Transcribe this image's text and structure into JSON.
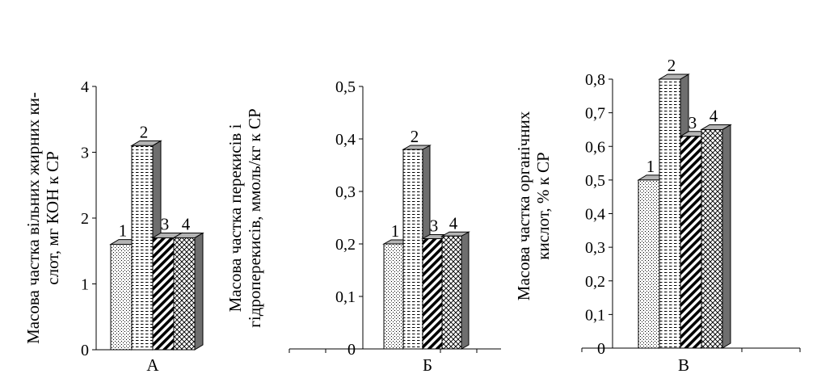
{
  "chart_data": [
    {
      "type": "bar",
      "panel_label": "А",
      "ylabel_lines": [
        "Масова частка вільних жирних ки-",
        "слот, мг КОН к СР"
      ],
      "categories": [
        "1",
        "2",
        "3",
        "4"
      ],
      "values": [
        1.6,
        3.1,
        1.7,
        1.7
      ],
      "ylim": [
        0,
        4
      ],
      "ticks": [
        "0",
        "1",
        "2",
        "3",
        "4"
      ],
      "grid": false
    },
    {
      "type": "bar",
      "panel_label": "Б",
      "ylabel_lines": [
        "Масова частка перекисів і",
        "гідроперекисів, ммоль/кг к СР"
      ],
      "categories": [
        "1",
        "2",
        "3",
        "4"
      ],
      "values": [
        0.2,
        0.38,
        0.21,
        0.215
      ],
      "ylim": [
        0,
        0.5
      ],
      "ticks": [
        "0",
        "0,1",
        "0,2",
        "0,3",
        "0,4",
        "0,5"
      ],
      "grid": false
    },
    {
      "type": "bar",
      "panel_label": "В",
      "ylabel_lines": [
        "Масова частка органічних",
        "кислот, % к СР"
      ],
      "categories": [
        "1",
        "2",
        "3",
        "4"
      ],
      "values": [
        0.5,
        0.8,
        0.63,
        0.65
      ],
      "ylim": [
        0,
        0.8
      ],
      "ticks": [
        "0",
        "0,1",
        "0,2",
        "0,3",
        "0,4",
        "0,5",
        "0,6",
        "0,7",
        "0,8"
      ],
      "grid": false
    }
  ]
}
